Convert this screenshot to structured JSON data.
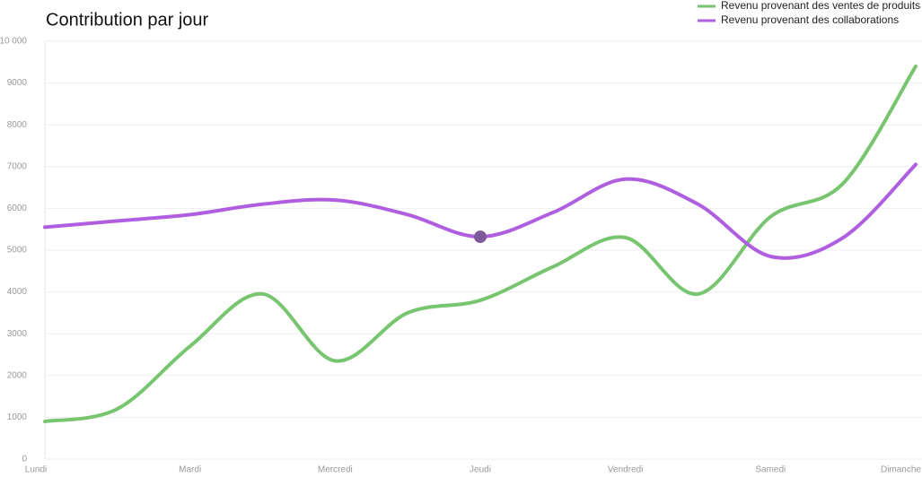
{
  "chart_data": {
    "type": "line",
    "title": "Contribution par jour",
    "categories": [
      "Lundi",
      null,
      "Mardi",
      null,
      "Mercredi",
      null,
      "Jeudi",
      null,
      "Vendredi",
      null,
      "Samedi",
      null,
      "Dimanche"
    ],
    "series": [
      {
        "name": "Revenu provenant des ventes de produits",
        "color": "#77c56f",
        "values": [
          900,
          1200,
          2700,
          3950,
          2350,
          3500,
          3800,
          4600,
          5300,
          3950,
          5800,
          6600,
          9400
        ]
      },
      {
        "name": "Revenu provenant des collaborations",
        "color": "#b05ee0",
        "values": [
          5550,
          5700,
          5850,
          6100,
          6200,
          5850,
          5320,
          5900,
          6700,
          6100,
          4850,
          5300,
          7050
        ]
      }
    ],
    "ylim": [
      0,
      10000
    ],
    "yticks": [
      0,
      1000,
      2000,
      3000,
      4000,
      5000,
      6000,
      7000,
      8000,
      9000,
      {
        "value": 10000,
        "label": "10 000"
      }
    ],
    "grid": true,
    "legend": "top-right"
  }
}
